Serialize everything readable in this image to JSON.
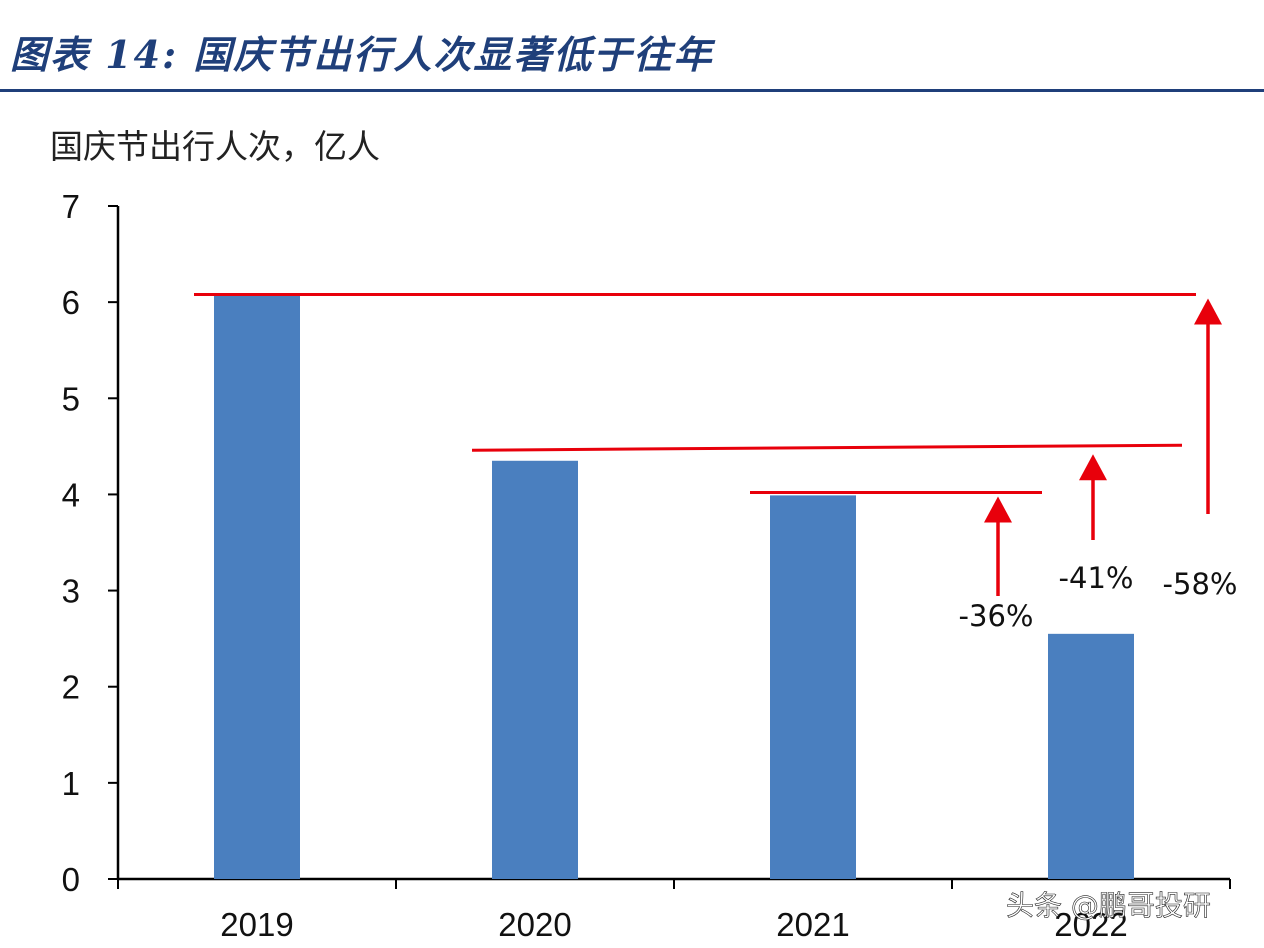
{
  "header": {
    "title": "图表 14:  国庆节出行人次显著低于往年"
  },
  "chart_data": {
    "type": "bar",
    "title": "",
    "ylabel": "国庆节出行人次，亿人",
    "xlabel": "",
    "categories": [
      "2019",
      "2020",
      "2021",
      "2022"
    ],
    "values": [
      6.08,
      4.35,
      3.99,
      2.55
    ],
    "ylim": [
      0,
      7
    ],
    "yticks": [
      "0",
      "1",
      "2",
      "3",
      "4",
      "5",
      "6",
      "7"
    ],
    "bar_color": "#4a7fbf",
    "grid": false,
    "reference_lines": [
      {
        "from_category": "2019",
        "level": 6.08
      },
      {
        "from_category": "2020",
        "level": 4.46
      },
      {
        "from_category": "2021",
        "level": 4.02
      }
    ],
    "annotations": [
      {
        "text": "-36%",
        "compare_to": "2021"
      },
      {
        "text": "-41%",
        "compare_to": "2020"
      },
      {
        "text": "-58%",
        "compare_to": "2019"
      }
    ],
    "annotation_color": "#e8000b"
  },
  "watermark": {
    "text": "头条 @鹏哥投研"
  }
}
